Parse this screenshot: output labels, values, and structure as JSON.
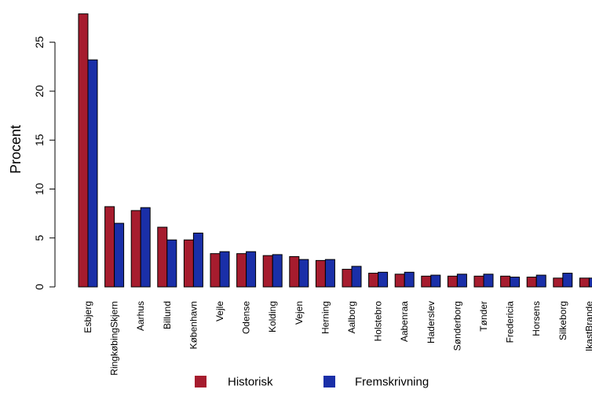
{
  "chart_data": {
    "type": "bar",
    "title": "",
    "xlabel": "",
    "ylabel": "Procent",
    "ylim": [
      0,
      28
    ],
    "yticks": [
      0,
      5,
      10,
      15,
      20,
      25
    ],
    "grid": false,
    "legend_position": "bottom",
    "categories": [
      "Esbjerg",
      "RingkøbingSkjern",
      "Aarhus",
      "Billund",
      "København",
      "Vejle",
      "Odense",
      "Kolding",
      "Vejen",
      "Herning",
      "Aalborg",
      "Holstebro",
      "Aabenraa",
      "Haderslev",
      "Sønderborg",
      "Tønder",
      "Fredericia",
      "Horsens",
      "Silkeborg",
      "IkastBrande"
    ],
    "series": [
      {
        "name": "Historisk",
        "color": "#A61C2E",
        "values": [
          27.9,
          8.2,
          7.8,
          6.1,
          4.8,
          3.4,
          3.4,
          3.2,
          3.1,
          2.7,
          1.8,
          1.4,
          1.3,
          1.1,
          1.1,
          1.1,
          1.1,
          1.0,
          0.9,
          0.9
        ]
      },
      {
        "name": "Fremskrivning",
        "color": "#1A2FA8",
        "values": [
          23.2,
          6.5,
          8.1,
          4.8,
          5.5,
          3.6,
          3.6,
          3.3,
          2.8,
          2.8,
          2.1,
          1.5,
          1.5,
          1.2,
          1.3,
          1.3,
          1.0,
          1.2,
          1.4,
          0.9
        ]
      }
    ]
  }
}
